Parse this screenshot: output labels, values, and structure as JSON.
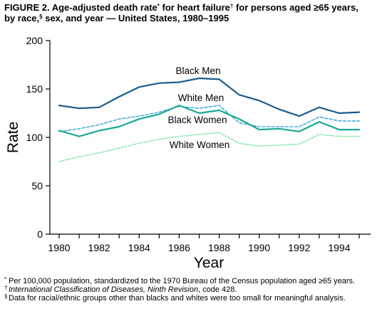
{
  "figure": {
    "title_line1": "FIGURE 2. Age-adjusted death rate",
    "title_star": "*",
    "title_mid1": " for heart failure",
    "title_dagger": "†",
    "title_mid2": " for persons aged ≥65 years,",
    "title_line2a": "by race,",
    "title_section": "§",
    "title_line2b": " sex, and year — United States, 1980–1995"
  },
  "footnotes": {
    "star_mark": "*",
    "star_text": "Per 100,000 population, standardized to the 1970 Bureau of the Census population aged ≥65 years.",
    "dagger_mark": "†",
    "dagger_ital": "International Classification of Diseases, Ninth Revision",
    "dagger_text": ", code 428.",
    "section_mark": "§",
    "section_text": "Data for racial/ethnic groups other than blacks and whites were too small for meaningful analysis."
  },
  "chart_data": {
    "type": "line",
    "xlabel": "Year",
    "ylabel": "Rate",
    "xlim": [
      1980,
      1995
    ],
    "ylim": [
      0,
      200
    ],
    "xticks": [
      1980,
      1982,
      1984,
      1986,
      1988,
      1990,
      1992,
      1994
    ],
    "yticks": [
      0,
      50,
      100,
      150,
      200
    ],
    "grid": false,
    "x": [
      1980,
      1981,
      1982,
      1983,
      1984,
      1985,
      1986,
      1987,
      1988,
      1989,
      1990,
      1991,
      1992,
      1993,
      1994,
      1995
    ],
    "series": [
      {
        "name": "Black Men",
        "color": "#1a5c8e",
        "style": "solid",
        "values": [
          133,
          130,
          131,
          142,
          152,
          156,
          157,
          161,
          160,
          144,
          138,
          129,
          122,
          131,
          125,
          126
        ]
      },
      {
        "name": "White Men",
        "color": "#4aaee0",
        "style": "dashed",
        "values": [
          106,
          109,
          113,
          119,
          122,
          126,
          132,
          130,
          133,
          115,
          111,
          111,
          111,
          121,
          117,
          117
        ]
      },
      {
        "name": "Black Women",
        "color": "#1aa893",
        "style": "solid",
        "values": [
          107,
          101,
          107,
          111,
          119,
          124,
          133,
          125,
          128,
          119,
          108,
          109,
          106,
          116,
          108,
          108
        ]
      },
      {
        "name": "White Women",
        "color": "#80e8a8",
        "style": "dotted",
        "values": [
          75,
          80,
          84,
          89,
          94,
          98,
          101,
          103,
          105,
          94,
          91,
          92,
          93,
          103,
          101,
          101
        ]
      }
    ]
  }
}
